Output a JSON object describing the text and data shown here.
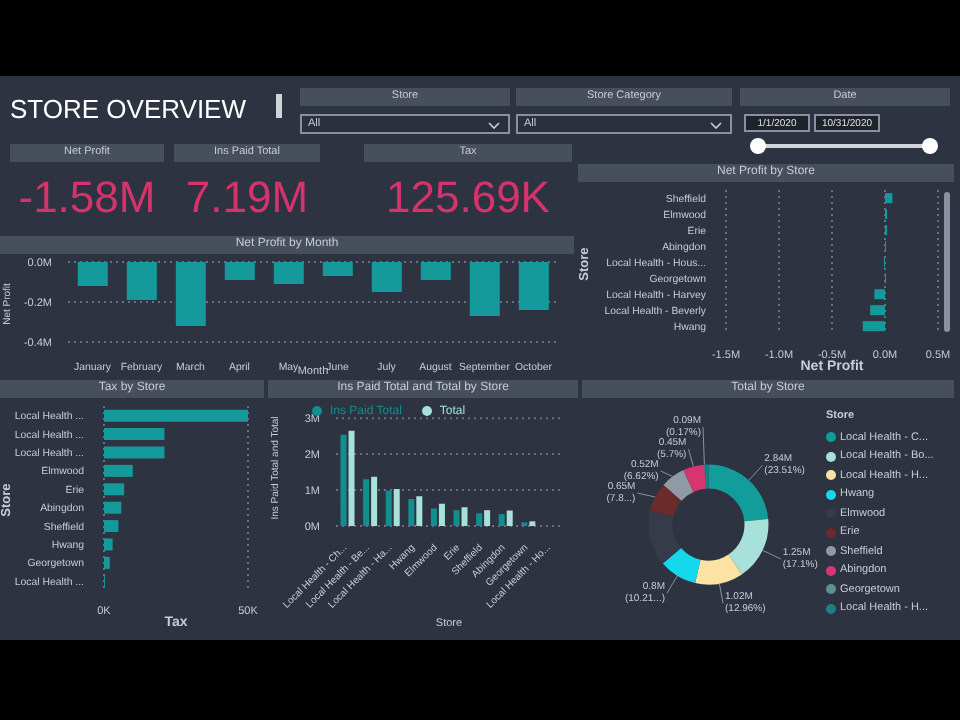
{
  "chart_data": [
    {
      "type": "other",
      "title": "STORE OVERVIEW",
      "annotations": [
        "Store",
        "All",
        "Store Category",
        "All",
        "Date",
        "1/1/2020",
        "10/31/2020",
        "Net Profit",
        "-1.58M",
        "Ins Paid Total",
        "7.19M",
        "Tax",
        "125.69K"
      ]
    },
    {
      "type": "bar",
      "title": "Net Profit by Month",
      "xlabel": "Month",
      "ylabel": "Net Profit",
      "categories": [
        "January",
        "February",
        "March",
        "April",
        "May",
        "June",
        "July",
        "August",
        "September",
        "October"
      ],
      "values": [
        -0.12,
        -0.19,
        -0.32,
        -0.09,
        -0.11,
        -0.07,
        -0.15,
        -0.09,
        -0.27,
        -0.24
      ],
      "color": "#159a9c",
      "ylim": [
        -0.4,
        0
      ],
      "yticks": [
        {
          "value": -0.4,
          "label": "-0.4M"
        },
        {
          "value": -0.2,
          "label": "-0.2M"
        },
        {
          "value": 0,
          "label": "0.0M"
        }
      ],
      "grid": "y"
    },
    {
      "type": "bar",
      "orientation": "horizontal",
      "title": "Net Profit by Store",
      "xlabel": "Net Profit",
      "ylabel": "Store",
      "categories": [
        "Sheffield",
        "Elmwood",
        "Erie",
        "Abingdon",
        "Local Health - Hous...",
        "Georgetown",
        "Local Health - Harvey",
        "Local Health - Beverly",
        "Hwang"
      ],
      "values": [
        0.07,
        0.02,
        0.02,
        0.01,
        -0.01,
        0.01,
        -0.1,
        -0.14,
        -0.21
      ],
      "color": "#159a9c",
      "xlim": [
        -1.5,
        0.5
      ],
      "xticks": [
        {
          "value": -1.5,
          "label": "-1.5M"
        },
        {
          "value": -1,
          "label": "-1.0M"
        },
        {
          "value": -0.5,
          "label": "-0.5M"
        },
        {
          "value": 0,
          "label": "0.0M"
        },
        {
          "value": 0.5,
          "label": "0.5M"
        }
      ],
      "grid": "x"
    },
    {
      "type": "bar",
      "orientation": "horizontal",
      "title": "Tax by Store",
      "xlabel": "Tax",
      "ylabel": "Store",
      "categories": [
        "Local Health ...",
        "Local Health ...",
        "Local Health ...",
        "Elmwood",
        "Erie",
        "Abingdon",
        "Sheffield",
        "Hwang",
        "Georgetown",
        "Local Health ..."
      ],
      "values": [
        50,
        21,
        21,
        10,
        7,
        6,
        5,
        3,
        2,
        0.3
      ],
      "color": "#159a9c",
      "xlim": [
        0,
        50
      ],
      "xticks": [
        {
          "value": 0,
          "label": "0K"
        },
        {
          "value": 50,
          "label": "50K"
        }
      ],
      "grid": "x"
    },
    {
      "type": "bar",
      "title": "Ins Paid Total and Total by Store",
      "xlabel": "Store",
      "ylabel": "Ins Paid Total and Total",
      "categories": [
        "Local Health - Ch...",
        "Local Health - Be...",
        "Local Health - Ha...",
        "Hwang",
        "Elmwood",
        "Erie",
        "Sheffield",
        "Abingdon",
        "Georgetown",
        "Local Health - Ho..."
      ],
      "series": [
        {
          "name": "Ins Paid Total",
          "color": "#118f8f",
          "values": [
            2.54,
            1.3,
            0.98,
            0.75,
            0.49,
            0.44,
            0.35,
            0.33,
            0.1,
            null
          ]
        },
        {
          "name": "Total",
          "color": "#a8e0da",
          "values": [
            2.65,
            1.37,
            1.03,
            0.83,
            0.62,
            0.52,
            0.44,
            0.43,
            0.13,
            null
          ]
        }
      ],
      "ylim": [
        0,
        3
      ],
      "yticks": [
        {
          "value": 0,
          "label": "0M"
        },
        {
          "value": 1,
          "label": "1M"
        },
        {
          "value": 2,
          "label": "2M"
        },
        {
          "value": 3,
          "label": "3M"
        }
      ],
      "grid": "y",
      "legend": "top left"
    },
    {
      "type": "donut",
      "title": "Total by Store",
      "legend_title": "Store",
      "legend": "right",
      "categories": [
        "Local Health - C...",
        "Local Health - Bo...",
        "Local Health - H...",
        "Hwang",
        "Elmwood",
        "Erie",
        "Sheffield",
        "Abingdon",
        "Georgetown",
        "Local Health - H..."
      ],
      "values": [
        23.51,
        17.1,
        12.96,
        10.21,
        14.93,
        7.8,
        6.62,
        5.7,
        0.17,
        1
      ],
      "colors": [
        "#129c9a",
        "#a8e0da",
        "#fce3a4",
        "#14d9ec",
        "#353b48",
        "#6b2b2b",
        "#8e9aa4",
        "#d6366f",
        "#5e8f95",
        "#1a7f86"
      ],
      "value_labels": [
        "2.84M (23.51%)",
        "1.25M (17.1%)",
        "1.02M (12.96%)",
        "0.8M (10.21...)",
        null,
        "0.65M (7.8...)",
        "0.52M (6.62%)",
        "0.45M (5.7%)",
        "0.09M (0.17%)",
        null
      ]
    }
  ]
}
